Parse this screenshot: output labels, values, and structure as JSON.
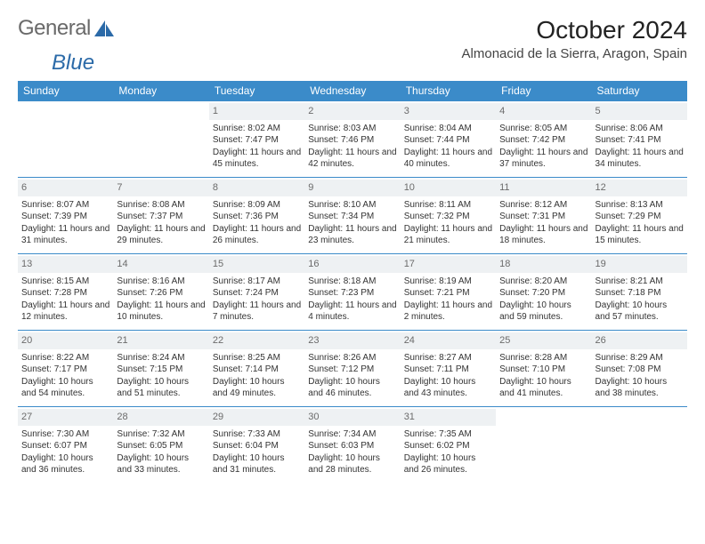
{
  "logo": {
    "text_general": "General",
    "text_blue": "Blue"
  },
  "title": "October 2024",
  "location": "Almonacid de la Sierra, Aragon, Spain",
  "colors": {
    "header_bg": "#3b8bc9",
    "header_text": "#ffffff",
    "daynum_bg": "#eef1f3",
    "daynum_text": "#6b6b6b",
    "border": "#3b8bc9",
    "logo_gray": "#6a6a6a",
    "logo_blue": "#2b6aa8"
  },
  "weekdays": [
    "Sunday",
    "Monday",
    "Tuesday",
    "Wednesday",
    "Thursday",
    "Friday",
    "Saturday"
  ],
  "month_start_weekday": 2,
  "days": [
    {
      "n": 1,
      "sunrise": "8:02 AM",
      "sunset": "7:47 PM",
      "daylight": "11 hours and 45 minutes."
    },
    {
      "n": 2,
      "sunrise": "8:03 AM",
      "sunset": "7:46 PM",
      "daylight": "11 hours and 42 minutes."
    },
    {
      "n": 3,
      "sunrise": "8:04 AM",
      "sunset": "7:44 PM",
      "daylight": "11 hours and 40 minutes."
    },
    {
      "n": 4,
      "sunrise": "8:05 AM",
      "sunset": "7:42 PM",
      "daylight": "11 hours and 37 minutes."
    },
    {
      "n": 5,
      "sunrise": "8:06 AM",
      "sunset": "7:41 PM",
      "daylight": "11 hours and 34 minutes."
    },
    {
      "n": 6,
      "sunrise": "8:07 AM",
      "sunset": "7:39 PM",
      "daylight": "11 hours and 31 minutes."
    },
    {
      "n": 7,
      "sunrise": "8:08 AM",
      "sunset": "7:37 PM",
      "daylight": "11 hours and 29 minutes."
    },
    {
      "n": 8,
      "sunrise": "8:09 AM",
      "sunset": "7:36 PM",
      "daylight": "11 hours and 26 minutes."
    },
    {
      "n": 9,
      "sunrise": "8:10 AM",
      "sunset": "7:34 PM",
      "daylight": "11 hours and 23 minutes."
    },
    {
      "n": 10,
      "sunrise": "8:11 AM",
      "sunset": "7:32 PM",
      "daylight": "11 hours and 21 minutes."
    },
    {
      "n": 11,
      "sunrise": "8:12 AM",
      "sunset": "7:31 PM",
      "daylight": "11 hours and 18 minutes."
    },
    {
      "n": 12,
      "sunrise": "8:13 AM",
      "sunset": "7:29 PM",
      "daylight": "11 hours and 15 minutes."
    },
    {
      "n": 13,
      "sunrise": "8:15 AM",
      "sunset": "7:28 PM",
      "daylight": "11 hours and 12 minutes."
    },
    {
      "n": 14,
      "sunrise": "8:16 AM",
      "sunset": "7:26 PM",
      "daylight": "11 hours and 10 minutes."
    },
    {
      "n": 15,
      "sunrise": "8:17 AM",
      "sunset": "7:24 PM",
      "daylight": "11 hours and 7 minutes."
    },
    {
      "n": 16,
      "sunrise": "8:18 AM",
      "sunset": "7:23 PM",
      "daylight": "11 hours and 4 minutes."
    },
    {
      "n": 17,
      "sunrise": "8:19 AM",
      "sunset": "7:21 PM",
      "daylight": "11 hours and 2 minutes."
    },
    {
      "n": 18,
      "sunrise": "8:20 AM",
      "sunset": "7:20 PM",
      "daylight": "10 hours and 59 minutes."
    },
    {
      "n": 19,
      "sunrise": "8:21 AM",
      "sunset": "7:18 PM",
      "daylight": "10 hours and 57 minutes."
    },
    {
      "n": 20,
      "sunrise": "8:22 AM",
      "sunset": "7:17 PM",
      "daylight": "10 hours and 54 minutes."
    },
    {
      "n": 21,
      "sunrise": "8:24 AM",
      "sunset": "7:15 PM",
      "daylight": "10 hours and 51 minutes."
    },
    {
      "n": 22,
      "sunrise": "8:25 AM",
      "sunset": "7:14 PM",
      "daylight": "10 hours and 49 minutes."
    },
    {
      "n": 23,
      "sunrise": "8:26 AM",
      "sunset": "7:12 PM",
      "daylight": "10 hours and 46 minutes."
    },
    {
      "n": 24,
      "sunrise": "8:27 AM",
      "sunset": "7:11 PM",
      "daylight": "10 hours and 43 minutes."
    },
    {
      "n": 25,
      "sunrise": "8:28 AM",
      "sunset": "7:10 PM",
      "daylight": "10 hours and 41 minutes."
    },
    {
      "n": 26,
      "sunrise": "8:29 AM",
      "sunset": "7:08 PM",
      "daylight": "10 hours and 38 minutes."
    },
    {
      "n": 27,
      "sunrise": "7:30 AM",
      "sunset": "6:07 PM",
      "daylight": "10 hours and 36 minutes."
    },
    {
      "n": 28,
      "sunrise": "7:32 AM",
      "sunset": "6:05 PM",
      "daylight": "10 hours and 33 minutes."
    },
    {
      "n": 29,
      "sunrise": "7:33 AM",
      "sunset": "6:04 PM",
      "daylight": "10 hours and 31 minutes."
    },
    {
      "n": 30,
      "sunrise": "7:34 AM",
      "sunset": "6:03 PM",
      "daylight": "10 hours and 28 minutes."
    },
    {
      "n": 31,
      "sunrise": "7:35 AM",
      "sunset": "6:02 PM",
      "daylight": "10 hours and 26 minutes."
    }
  ],
  "labels": {
    "sunrise": "Sunrise:",
    "sunset": "Sunset:",
    "daylight": "Daylight:"
  }
}
